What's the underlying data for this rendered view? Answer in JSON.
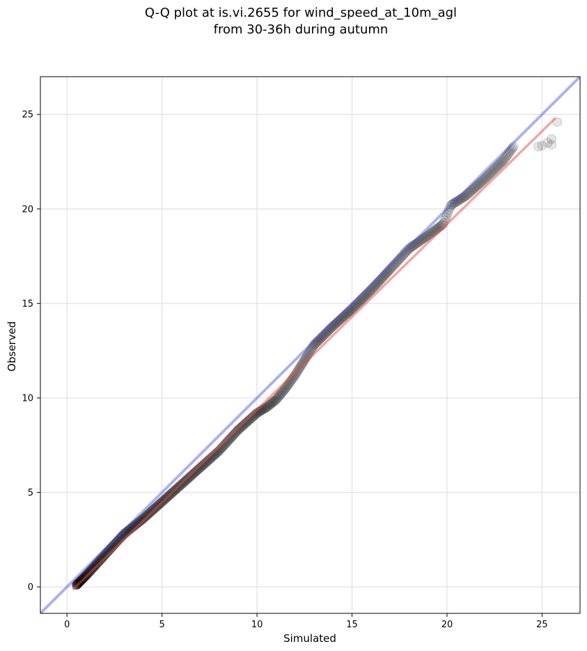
{
  "chart_data": {
    "type": "scatter",
    "title_line1": "Q-Q plot at is.vi.2655 for wind_speed_at_10m_agl",
    "title_line2": "from 30-36h during autumn",
    "xlabel": "Simulated",
    "ylabel": "Observed",
    "xlim": [
      -1.4,
      27.0
    ],
    "ylim": [
      -1.4,
      27.0
    ],
    "xticks": [
      0,
      5,
      10,
      15,
      20,
      25
    ],
    "yticks": [
      0,
      5,
      10,
      15,
      20,
      25
    ],
    "grid": true,
    "colors": {
      "points": "#000000",
      "identity_line": "#4a4fe0",
      "fit_line": "#e74c4c",
      "grid": "#e6e6e6"
    },
    "identity_line": {
      "x": [
        -1.4,
        27.0
      ],
      "y": [
        -1.4,
        27.0
      ]
    },
    "fit_line": {
      "x": [
        0.3,
        25.7
      ],
      "y": [
        -0.15,
        24.8
      ]
    },
    "anchor_points": {
      "x": [
        0.5,
        1.0,
        1.5,
        2.0,
        2.5,
        3.0,
        4.0,
        5.0,
        6.0,
        7.0,
        8.0,
        9.0,
        10.0,
        10.5,
        11.0,
        11.5,
        12.0,
        12.5,
        13.0,
        14.0,
        15.0,
        16.0,
        17.0,
        18.0,
        19.0,
        19.8,
        20.2,
        21.0,
        22.0,
        23.0,
        23.5
      ],
      "y": [
        0.1,
        0.6,
        1.15,
        1.7,
        2.25,
        2.8,
        3.6,
        4.5,
        5.4,
        6.3,
        7.2,
        8.3,
        9.2,
        9.5,
        9.9,
        10.5,
        11.2,
        12.0,
        12.8,
        13.8,
        14.7,
        15.7,
        16.8,
        17.9,
        18.6,
        19.2,
        20.2,
        20.7,
        21.6,
        22.6,
        23.3
      ]
    },
    "outlier_points": [
      {
        "x": 24.8,
        "y": 23.3
      },
      {
        "x": 25.0,
        "y": 23.35
      },
      {
        "x": 25.3,
        "y": 23.5
      },
      {
        "x": 25.5,
        "y": 23.4
      },
      {
        "x": 25.5,
        "y": 23.7
      },
      {
        "x": 25.8,
        "y": 24.6
      }
    ]
  }
}
